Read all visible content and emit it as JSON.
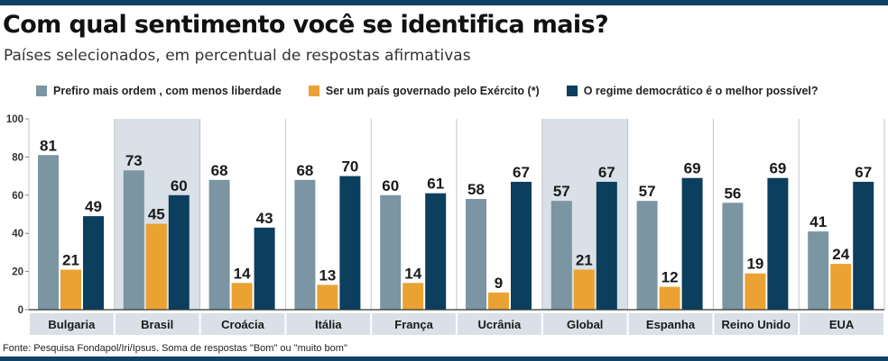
{
  "title": "Com qual sentimento você se identifica mais?",
  "subtitle": "Países selecionados, em percentual de respostas afirmativas",
  "source": "Fonte: Pesquisa Fondapol/Iri/Ipsus. Soma de respostas \"Bom\" ou \"muito bom\"",
  "colors": {
    "series1": "#7b95a2",
    "series2": "#eaa233",
    "series3": "#0c3e5d",
    "highlight": "#d9e0e7",
    "rule": "#0f4264"
  },
  "chart_data": {
    "type": "bar",
    "categories": [
      "Bulgaria",
      "Brasil",
      "Croácia",
      "Itália",
      "França",
      "Ucrânia",
      "Global",
      "Espanha",
      "Reino Unido",
      "EUA"
    ],
    "highlighted": [
      "Brasil",
      "Global"
    ],
    "series": [
      {
        "name": "Prefiro mais ordem , com menos liberdade",
        "values": [
          81,
          73,
          68,
          68,
          60,
          58,
          57,
          57,
          56,
          41
        ]
      },
      {
        "name": "Ser um país governado pelo Exército (*)",
        "values": [
          21,
          45,
          14,
          13,
          14,
          9,
          21,
          12,
          19,
          24
        ]
      },
      {
        "name": "O regime democrático é o melhor possível?",
        "values": [
          49,
          60,
          43,
          70,
          61,
          67,
          67,
          69,
          69,
          67
        ]
      }
    ],
    "ylim": [
      0,
      100
    ],
    "yticks": [
      0,
      20,
      40,
      60,
      80,
      100
    ],
    "legend_position": "top",
    "grid": false
  }
}
